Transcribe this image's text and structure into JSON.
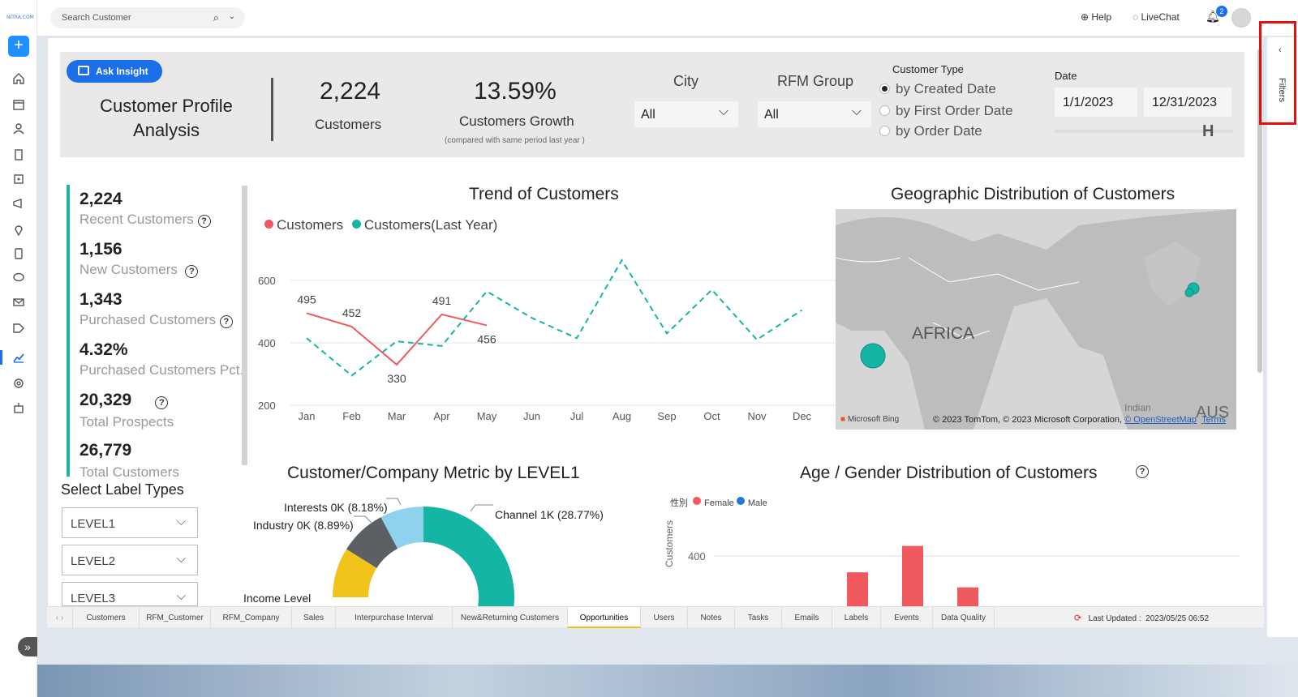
{
  "sidebar": {
    "logo_text": "NITRA.COM"
  },
  "topbar": {
    "search_placeholder": "Search Customer",
    "help_label": "Help",
    "livechat_label": "LiveChat",
    "notification_count": "2"
  },
  "filters_rail": {
    "label": "Filters"
  },
  "header": {
    "ask_insight_label": "Ask Insight",
    "title_line1": "Customer Profile",
    "title_line2": "Analysis",
    "customers_value": "2,224",
    "customers_label": "Customers",
    "growth_value": "13.59%",
    "growth_label": "Customers Growth",
    "growth_note": "(compared with same period last year )",
    "city_label": "City",
    "city_value": "All",
    "rfm_label": "RFM Group",
    "rfm_value": "All",
    "customer_type_label": "Customer Type",
    "customer_type_options": [
      "by Created Date",
      "by First Order Date",
      "by Order Date"
    ],
    "date_label": "Date",
    "date_start": "1/1/2023",
    "date_end": "12/31/2023"
  },
  "kpis": [
    {
      "value": "2,224",
      "label": "Recent Customers"
    },
    {
      "value": "1,156",
      "label": "New Customers"
    },
    {
      "value": "1,343",
      "label": "Purchased Customers"
    },
    {
      "value": "4.32%",
      "label": "Purchased Customers Pct."
    },
    {
      "value": "20,329",
      "label": "Total Prospects"
    },
    {
      "value": "26,779",
      "label": "Total Customers"
    }
  ],
  "trend": {
    "title": "Trend of Customers",
    "legend_customers": "Customers",
    "legend_last_year": "Customers(Last Year)",
    "color_customers": "#f0595e",
    "color_last_year": "#15b5a5"
  },
  "chart_data": [
    {
      "type": "line",
      "title": "Trend of Customers",
      "categories": [
        "Jan",
        "Feb",
        "Mar",
        "Apr",
        "May",
        "Jun",
        "Jul",
        "Aug",
        "Sep",
        "Oct",
        "Nov",
        "Dec"
      ],
      "y_ticks": [
        200,
        400,
        600
      ],
      "ylim": [
        200,
        650
      ],
      "series": [
        {
          "name": "Customers",
          "values": [
            495,
            452,
            330,
            491,
            456,
            null,
            null,
            null,
            null,
            null,
            null,
            null
          ]
        },
        {
          "name": "Customers(Last Year)",
          "values": [
            415,
            295,
            405,
            390,
            565,
            480,
            415,
            665,
            430,
            570,
            410,
            505
          ]
        }
      ],
      "data_labels": [
        "495",
        "452",
        "330",
        "491",
        "456"
      ],
      "grid": true,
      "legend": "top-left"
    },
    {
      "type": "pie",
      "title": "Customer/Company Metric by LEVEL1",
      "labels": [
        "Channel 1K (28.77%)",
        "Interests 0K (8.18%)",
        "Industry 0K (8.89%)",
        "Income Level"
      ],
      "values": [
        28.77,
        8.18,
        8.89,
        10.0
      ],
      "colors": [
        "#15b5a5",
        "#8fd2ee",
        "#5b6064",
        "#f0c419"
      ]
    },
    {
      "type": "bar",
      "title": "Age / Gender Distribution of Customers",
      "legend_prefix": "性別",
      "series_names": [
        "Female",
        "Male"
      ],
      "colors": [
        "#f0595e",
        "#1e78e0"
      ],
      "ylabel": "Customers",
      "y_ticks": [
        400
      ],
      "values": [
        270,
        480,
        150
      ]
    }
  ],
  "map": {
    "title": "Geographic Distribution of Customers",
    "africa_label": "AFRICA",
    "indian_label": "Indian",
    "aus_label": "AUS",
    "copyright": "© 2023 TomTom, © 2023 Microsoft Corporation,",
    "osm_link": "© OpenStreetMap",
    "terms_link": "Terms",
    "bing_label": "Microsoft Bing"
  },
  "label_types": {
    "title": "Select Label Types",
    "levels": [
      "LEVEL1",
      "LEVEL2",
      "LEVEL3"
    ]
  },
  "donut_labels": {
    "interests": "Interests 0K (8.18%)",
    "industry": "Industry 0K (8.89%)",
    "channel": "Channel 1K (28.77%)",
    "income": "Income Level"
  },
  "age_gender": {
    "legend_prefix": "性別",
    "female": "Female",
    "male": "Male",
    "ylabel": "Customers",
    "tick": "400"
  },
  "tabs": [
    "Customers",
    "RFM_Customer",
    "RFM_Company",
    "Sales",
    "Interpurchase Interval",
    "New&Returning Customers",
    "Opportunities",
    "Users",
    "Notes",
    "Tasks",
    "Emails",
    "Labels",
    "Events",
    "Data Quality"
  ],
  "active_tab": "Opportunities",
  "last_updated_label": "Last Updated :",
  "last_updated_value": "2023/05/25 06:52"
}
